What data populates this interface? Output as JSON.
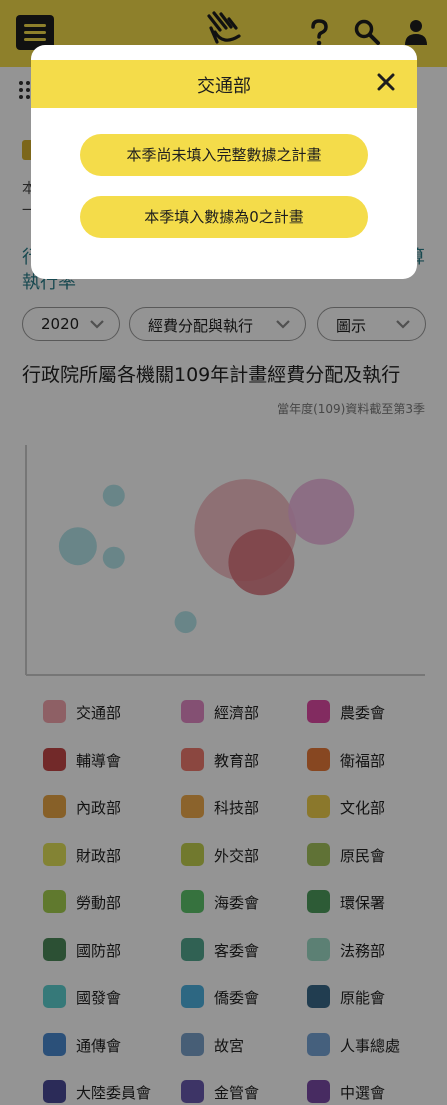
{
  "header": {
    "menu_icon": "hamburger-icon",
    "logo_icon": "hand-logo-icon",
    "help_icon": "question-icon",
    "search_icon": "search-icon",
    "user_icon": "user-icon"
  },
  "page": {
    "heading_partial": "行",
    "heading_partial_right": "算",
    "heading_line2": "執行率",
    "snippet1": "本",
    "snippet2": "一"
  },
  "filters": {
    "year": "2020",
    "category": "經費分配與執行",
    "view": "圖示"
  },
  "chart": {
    "title": "行政院所屬各機關109年計畫經費分配及執行",
    "note": "當年度(109)資料截至第3季"
  },
  "chart_data": {
    "type": "scatter",
    "title": "行政院所屬各機關109年計畫經費分配及執行",
    "series": [
      {
        "x": 0.22,
        "y": 0.78,
        "r": 11,
        "color": "#a9e0e6"
      },
      {
        "x": 0.13,
        "y": 0.56,
        "r": 19,
        "color": "#a9e0e6"
      },
      {
        "x": 0.22,
        "y": 0.51,
        "r": 11,
        "color": "#a9e0e6"
      },
      {
        "x": 0.55,
        "y": 0.63,
        "r": 51,
        "color": "#f3b6be"
      },
      {
        "x": 0.74,
        "y": 0.71,
        "r": 33,
        "color": "#f0b3df"
      },
      {
        "x": 0.59,
        "y": 0.49,
        "r": 33,
        "color": "#d9707a"
      },
      {
        "x": 0.4,
        "y": 0.23,
        "r": 11,
        "color": "#a9e0e6"
      }
    ]
  },
  "legend": [
    {
      "name": "交通部",
      "color": "#f4a6ae"
    },
    {
      "name": "經濟部",
      "color": "#e48ac6"
    },
    {
      "name": "農委會",
      "color": "#e04aa6"
    },
    {
      "name": "輔導會",
      "color": "#c54848"
    },
    {
      "name": "教育部",
      "color": "#f07b6e"
    },
    {
      "name": "衛福部",
      "color": "#e97a3a"
    },
    {
      "name": "內政部",
      "color": "#e8a646"
    },
    {
      "name": "科技部",
      "color": "#f0ab4c"
    },
    {
      "name": "文化部",
      "color": "#f0cf4c"
    },
    {
      "name": "財政部",
      "color": "#e2e25a"
    },
    {
      "name": "外交部",
      "color": "#c3d050"
    },
    {
      "name": "原民會",
      "color": "#a5c45e"
    },
    {
      "name": "勞動部",
      "color": "#a6d050"
    },
    {
      "name": "海委會",
      "color": "#5ec46c"
    },
    {
      "name": "環保署",
      "color": "#4e9e5e"
    },
    {
      "name": "國防部",
      "color": "#4c8a5a"
    },
    {
      "name": "客委會",
      "color": "#54a890"
    },
    {
      "name": "法務部",
      "color": "#9fdcc8"
    },
    {
      "name": "國發會",
      "color": "#5ed0d0"
    },
    {
      "name": "僑委會",
      "color": "#4eb2e0"
    },
    {
      "name": "原能會",
      "color": "#3a6a8a"
    },
    {
      "name": "通傳會",
      "color": "#4a8ad0"
    },
    {
      "name": "故宮",
      "color": "#7aa2cc"
    },
    {
      "name": "人事總處",
      "color": "#78a6d8"
    },
    {
      "name": "大陸委員會",
      "color": "#4a4a98"
    },
    {
      "name": "金管會",
      "color": "#6a5ab0"
    },
    {
      "name": "中選會",
      "color": "#7a4aa8"
    }
  ],
  "modal": {
    "title": "交通部",
    "close_icon": "close-icon",
    "buttons": [
      "本季尚未填入完整數據之計畫",
      "本季填入數據為0之計畫"
    ]
  }
}
